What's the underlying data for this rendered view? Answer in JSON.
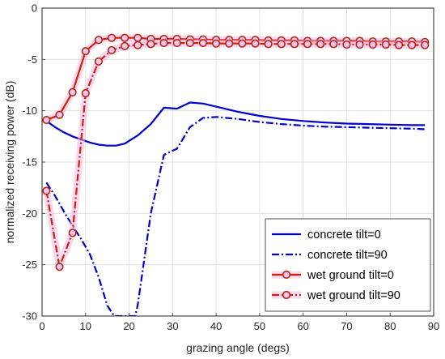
{
  "chart_data": {
    "type": "line",
    "xlabel": "grazing angle (degs)",
    "ylabel": "normalized receiving power (dB)",
    "xlim": [
      0,
      90
    ],
    "ylim": [
      -30,
      0
    ],
    "xticks": [
      "0",
      "10",
      "20",
      "30",
      "40",
      "50",
      "60",
      "70",
      "80",
      "90"
    ],
    "yticks": [
      "0",
      "-5",
      "-10",
      "-15",
      "-20",
      "-25",
      "-30"
    ],
    "grid": true,
    "legend_position": "bottom-right",
    "series": [
      {
        "name": "concrete tilt=0",
        "color": "#0000cc",
        "line_style": "solid",
        "marker": "none",
        "x": [
          1,
          3,
          5,
          7,
          9,
          11,
          13,
          15,
          17,
          19,
          22,
          25,
          28,
          31,
          34,
          37,
          40,
          45,
          50,
          55,
          60,
          65,
          70,
          75,
          80,
          85,
          88
        ],
        "y": [
          -11.0,
          -11.6,
          -12.1,
          -12.5,
          -12.8,
          -13.1,
          -13.3,
          -13.4,
          -13.4,
          -13.2,
          -12.4,
          -11.3,
          -9.7,
          -9.8,
          -9.2,
          -9.3,
          -9.6,
          -10.1,
          -10.5,
          -10.8,
          -11.0,
          -11.15,
          -11.25,
          -11.3,
          -11.35,
          -11.4,
          -11.4
        ]
      },
      {
        "name": "concrete tilt=90",
        "color": "#0000cc",
        "line_style": "dashdot",
        "marker": "none",
        "x": [
          1,
          3,
          5,
          7,
          9,
          11,
          13,
          15,
          16.6,
          21.4,
          22,
          25,
          28,
          31,
          34,
          37,
          40,
          45,
          50,
          55,
          60,
          65,
          70,
          75,
          80,
          85,
          88
        ],
        "y": [
          -17.0,
          -18.3,
          -19.8,
          -21.2,
          -22.5,
          -24.0,
          -26.2,
          -29.0,
          -30.0,
          -30.0,
          -28.9,
          -20.0,
          -14.3,
          -13.7,
          -11.6,
          -10.7,
          -10.6,
          -10.8,
          -11.1,
          -11.3,
          -11.45,
          -11.55,
          -11.6,
          -11.65,
          -11.7,
          -11.75,
          -11.8
        ]
      },
      {
        "name": "wet ground tilt=0",
        "color": "#cc2200",
        "line_style": "solid",
        "marker": "circle",
        "x": [
          1,
          4,
          7,
          10,
          13,
          16,
          19,
          22,
          25,
          28,
          31,
          34,
          37,
          40,
          43,
          46,
          49,
          52,
          55,
          58,
          61,
          64,
          67,
          70,
          73,
          76,
          79,
          82,
          85,
          88
        ],
        "y": [
          -10.9,
          -10.4,
          -8.2,
          -4.2,
          -3.1,
          -2.9,
          -2.9,
          -2.9,
          -3.0,
          -3.0,
          -3.0,
          -3.05,
          -3.05,
          -3.1,
          -3.1,
          -3.1,
          -3.1,
          -3.15,
          -3.15,
          -3.15,
          -3.2,
          -3.2,
          -3.2,
          -3.2,
          -3.2,
          -3.25,
          -3.25,
          -3.25,
          -3.25,
          -3.3
        ]
      },
      {
        "name": "wet ground tilt=90",
        "color": "#cc2200",
        "line_style": "dashdot",
        "marker": "circle",
        "x": [
          1,
          4,
          7,
          10,
          13,
          16,
          19,
          22,
          25,
          28,
          31,
          34,
          37,
          40,
          43,
          46,
          49,
          52,
          55,
          58,
          61,
          64,
          67,
          70,
          73,
          76,
          79,
          82,
          85,
          88
        ],
        "y": [
          -17.8,
          -25.2,
          -21.9,
          -8.3,
          -5.2,
          -4.1,
          -3.7,
          -3.6,
          -3.5,
          -3.4,
          -3.4,
          -3.4,
          -3.4,
          -3.45,
          -3.45,
          -3.45,
          -3.45,
          -3.5,
          -3.5,
          -3.5,
          -3.5,
          -3.5,
          -3.5,
          -3.55,
          -3.55,
          -3.55,
          -3.55,
          -3.6,
          -3.6,
          -3.6
        ]
      }
    ]
  }
}
